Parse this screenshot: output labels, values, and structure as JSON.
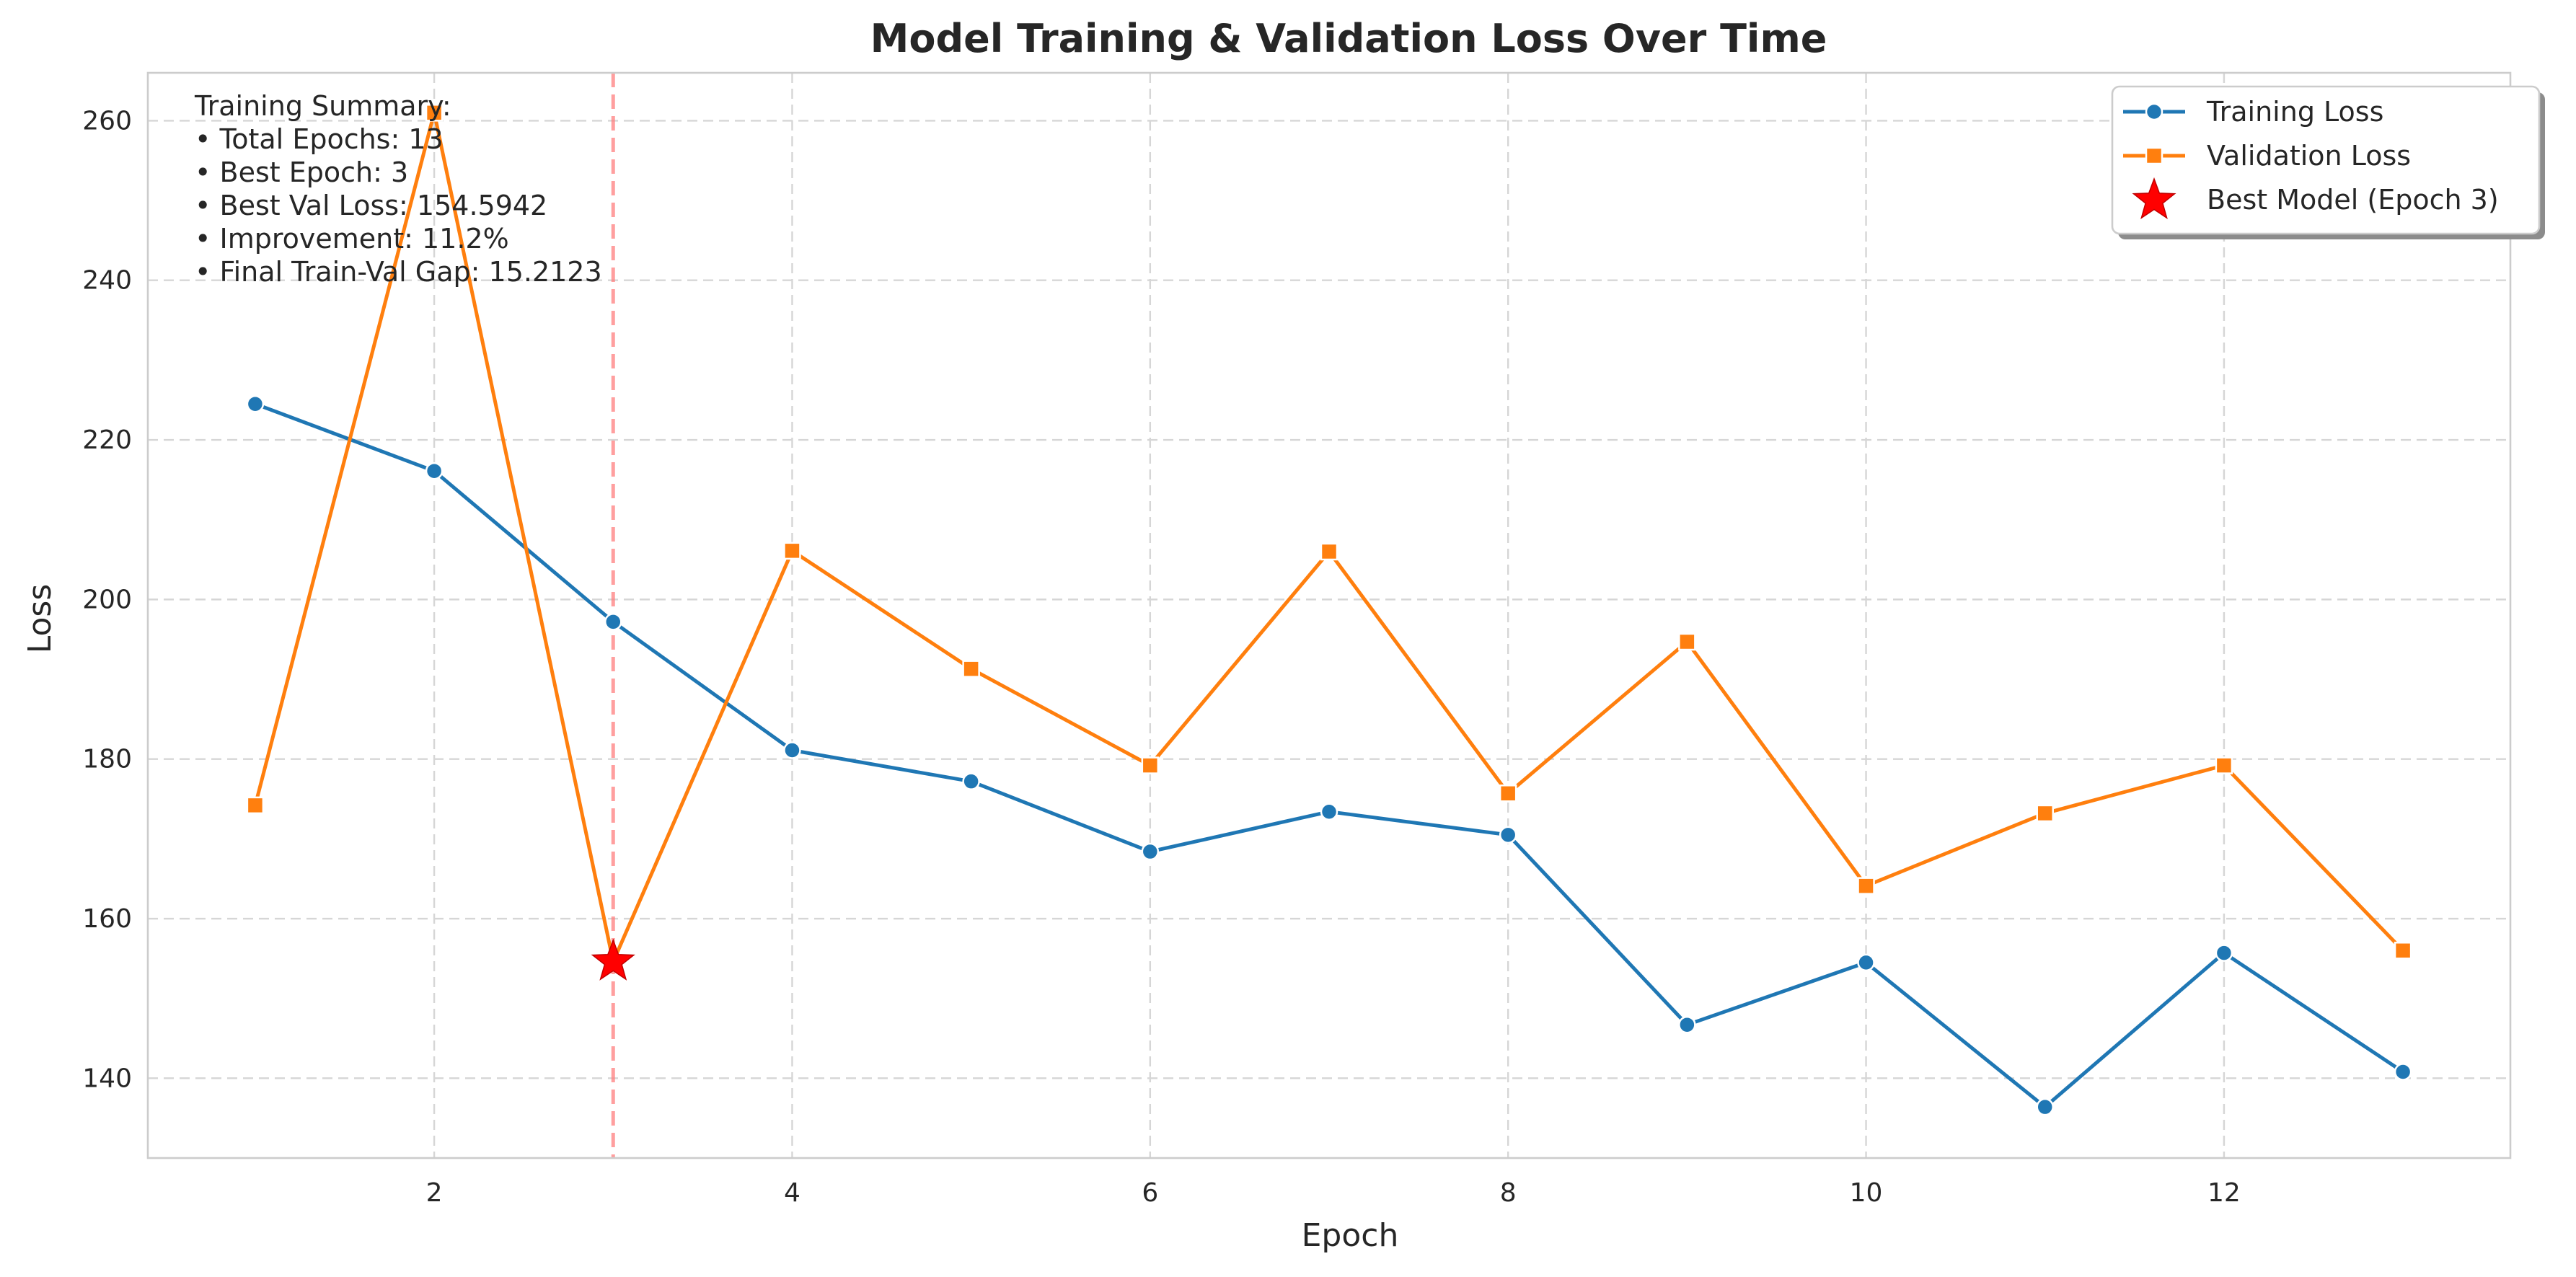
{
  "chart_data": {
    "type": "line",
    "title": "Model Training & Validation Loss Over Time",
    "xlabel": "Epoch",
    "ylabel": "Loss",
    "xlim": [
      0.4,
      13.6
    ],
    "ylim": [
      130,
      266
    ],
    "xticks": [
      2,
      4,
      6,
      8,
      10,
      12
    ],
    "yticks": [
      140,
      160,
      180,
      200,
      220,
      240,
      260
    ],
    "grid": true,
    "legend_position": "top-right",
    "x": [
      1,
      2,
      3,
      4,
      5,
      6,
      7,
      8,
      9,
      10,
      11,
      12,
      13
    ],
    "series": [
      {
        "name": "Training Loss",
        "marker": "circle",
        "color": "#1f77b4",
        "values": [
          224.5,
          216.1,
          197.2,
          181.1,
          177.2,
          168.4,
          173.4,
          170.5,
          146.7,
          154.5,
          136.4,
          155.7,
          140.8
        ]
      },
      {
        "name": "Validation Loss",
        "marker": "square",
        "color": "#ff7f0e",
        "values": [
          174.2,
          261.0,
          154.6,
          206.1,
          191.3,
          179.2,
          206.0,
          175.7,
          194.7,
          164.1,
          173.2,
          179.2,
          156.0
        ]
      }
    ],
    "best_model": {
      "label": "Best Model (Epoch 3)",
      "epoch": 3,
      "value": 154.5942,
      "color": "#ff0000",
      "marker": "star",
      "vline_color": "#ff7f7f"
    },
    "summary": {
      "title": "Training Summary:",
      "lines": [
        "• Total Epochs: 13",
        "• Best Epoch: 3",
        "• Best Val Loss: 154.5942",
        "• Improvement: 11.2%",
        "• Final Train-Val Gap: 15.2123"
      ]
    }
  }
}
